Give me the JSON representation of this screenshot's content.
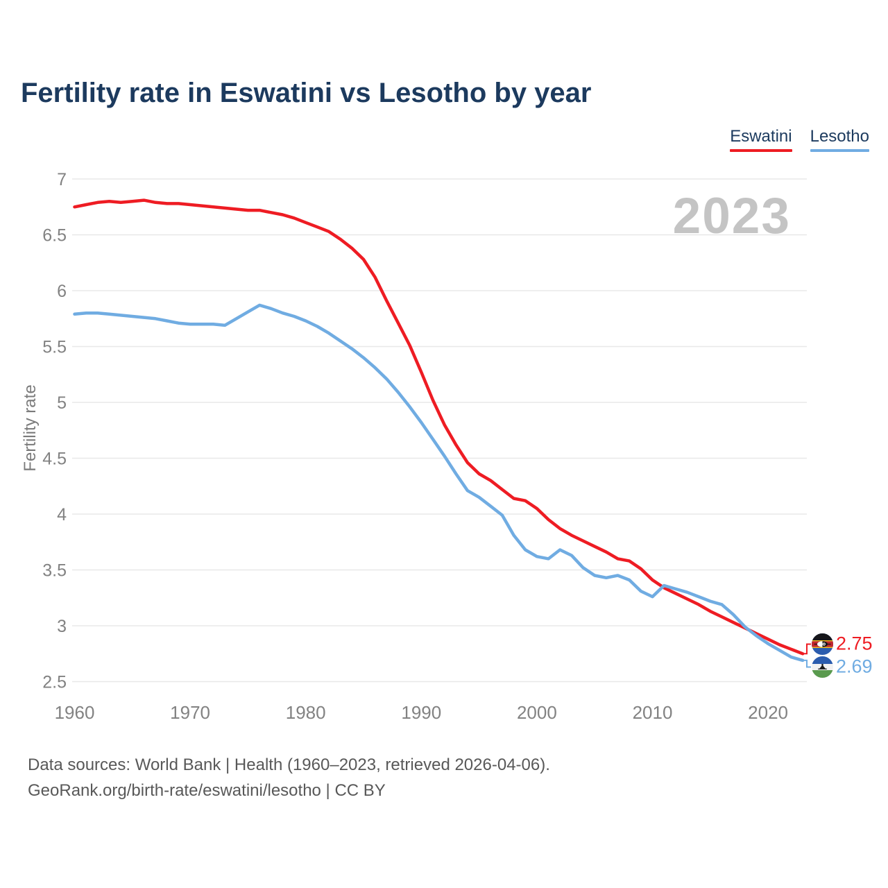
{
  "title": "Fertility rate in Eswatini vs Lesotho by year",
  "watermark": "2023",
  "legend": [
    {
      "label": "Eswatini",
      "color": "#ee1c23"
    },
    {
      "label": "Lesotho",
      "color": "#70ace2"
    }
  ],
  "chart_data": {
    "type": "line",
    "title": "Fertility rate in Eswatini vs Lesotho by year",
    "xlabel": "",
    "ylabel": "Fertility rate",
    "ylim": [
      2.5,
      7
    ],
    "yticks": [
      2.5,
      3,
      3.5,
      4,
      4.5,
      5,
      5.5,
      6,
      6.5,
      7
    ],
    "xticks": [
      1960,
      1970,
      1980,
      1990,
      2000,
      2010,
      2020
    ],
    "grid": "horizontal",
    "legend_position": "top-right",
    "x": [
      1960,
      1961,
      1962,
      1963,
      1964,
      1965,
      1966,
      1967,
      1968,
      1969,
      1970,
      1971,
      1972,
      1973,
      1974,
      1975,
      1976,
      1977,
      1978,
      1979,
      1980,
      1981,
      1982,
      1983,
      1984,
      1985,
      1986,
      1987,
      1988,
      1989,
      1990,
      1991,
      1992,
      1993,
      1994,
      1995,
      1996,
      1997,
      1998,
      1999,
      2000,
      2001,
      2002,
      2003,
      2004,
      2005,
      2006,
      2007,
      2008,
      2009,
      2010,
      2011,
      2012,
      2013,
      2014,
      2015,
      2016,
      2017,
      2018,
      2019,
      2020,
      2021,
      2022,
      2023
    ],
    "series": [
      {
        "name": "Eswatini",
        "color": "#ee1c23",
        "end_label": "2.75",
        "values": [
          6.75,
          6.77,
          6.79,
          6.8,
          6.79,
          6.8,
          6.81,
          6.79,
          6.78,
          6.78,
          6.77,
          6.76,
          6.75,
          6.74,
          6.73,
          6.72,
          6.72,
          6.7,
          6.68,
          6.65,
          6.61,
          6.57,
          6.53,
          6.46,
          6.38,
          6.28,
          6.12,
          5.91,
          5.71,
          5.51,
          5.27,
          5.02,
          4.8,
          4.62,
          4.46,
          4.36,
          4.3,
          4.22,
          4.14,
          4.12,
          4.05,
          3.95,
          3.87,
          3.81,
          3.76,
          3.71,
          3.66,
          3.6,
          3.58,
          3.51,
          3.41,
          3.34,
          3.29,
          3.24,
          3.19,
          3.13,
          3.08,
          3.03,
          2.98,
          2.93,
          2.88,
          2.83,
          2.79,
          2.75
        ]
      },
      {
        "name": "Lesotho",
        "color": "#70ace2",
        "end_label": "2.69",
        "values": [
          5.79,
          5.8,
          5.8,
          5.79,
          5.78,
          5.77,
          5.76,
          5.75,
          5.73,
          5.71,
          5.7,
          5.7,
          5.7,
          5.69,
          5.75,
          5.81,
          5.87,
          5.84,
          5.8,
          5.77,
          5.73,
          5.68,
          5.62,
          5.55,
          5.48,
          5.4,
          5.31,
          5.21,
          5.09,
          4.96,
          4.82,
          4.67,
          4.52,
          4.36,
          4.21,
          4.15,
          4.07,
          3.99,
          3.81,
          3.68,
          3.62,
          3.6,
          3.68,
          3.63,
          3.52,
          3.45,
          3.43,
          3.45,
          3.41,
          3.31,
          3.26,
          3.36,
          3.33,
          3.3,
          3.26,
          3.22,
          3.19,
          3.1,
          2.99,
          2.91,
          2.84,
          2.78,
          2.72,
          2.69
        ]
      }
    ]
  },
  "footer": {
    "line1": "Data sources: World Bank | Health (1960–2023, retrieved 2026-04-06).",
    "line2": "GeoRank.org/birth-rate/eswatini/lesotho | CC BY"
  }
}
